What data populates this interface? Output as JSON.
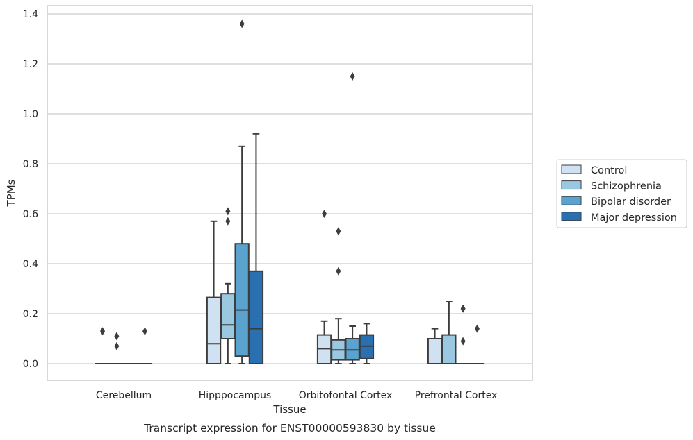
{
  "chart_data": {
    "type": "boxplot",
    "title": "Transcript expression for ENST00000593830 by tissue",
    "xlabel": "Tissue",
    "ylabel": "TPMs",
    "ylim": [
      -0.065,
      1.43
    ],
    "yticks": [
      "0.0",
      "0.2",
      "0.4",
      "0.6",
      "0.8",
      "1.0",
      "1.2",
      "1.4"
    ],
    "ytick_values": [
      0,
      0.2,
      0.4,
      0.6,
      0.8,
      1.0,
      1.2,
      1.4
    ],
    "categories": [
      "Cerebellum",
      "Hipppocampus",
      "Orbitofontal Cortex",
      "Prefrontal Cortex"
    ],
    "grid": "horizontal",
    "legend_position": "right",
    "series": [
      {
        "name": "Control",
        "color": "#d0e1f2",
        "boxes": [
          {
            "category": "Cerebellum",
            "whislo": 0,
            "q1": 0,
            "med": 0,
            "q3": 0,
            "whishi": 0,
            "fliers": [
              0.13
            ]
          },
          {
            "category": "Hipppocampus",
            "whislo": 0,
            "q1": 0,
            "med": 0.08,
            "q3": 0.265,
            "whishi": 0.57,
            "fliers": []
          },
          {
            "category": "Orbitofontal Cortex",
            "whislo": 0,
            "q1": 0,
            "med": 0.06,
            "q3": 0.115,
            "whishi": 0.17,
            "fliers": [
              0.6
            ]
          },
          {
            "category": "Prefrontal Cortex",
            "whislo": 0,
            "q1": 0,
            "med": 0,
            "q3": 0.1,
            "whishi": 0.14,
            "fliers": []
          }
        ]
      },
      {
        "name": "Schizophrenia",
        "color": "#9ac8e0",
        "boxes": [
          {
            "category": "Cerebellum",
            "whislo": 0,
            "q1": 0,
            "med": 0,
            "q3": 0,
            "whishi": 0,
            "fliers": [
              0.11,
              0.07
            ]
          },
          {
            "category": "Hipppocampus",
            "whislo": 0,
            "q1": 0.1,
            "med": 0.155,
            "q3": 0.28,
            "whishi": 0.32,
            "fliers": [
              0.61,
              0.57
            ]
          },
          {
            "category": "Orbitofontal Cortex",
            "whislo": 0,
            "q1": 0.015,
            "med": 0.055,
            "q3": 0.095,
            "whishi": 0.18,
            "fliers": [
              0.53,
              0.37
            ]
          },
          {
            "category": "Prefrontal Cortex",
            "whislo": 0,
            "q1": 0,
            "med": 0,
            "q3": 0.115,
            "whishi": 0.25,
            "fliers": []
          }
        ]
      },
      {
        "name": "Bipolar disorder",
        "color": "#5ba3cf",
        "boxes": [
          {
            "category": "Cerebellum",
            "whislo": 0,
            "q1": 0,
            "med": 0,
            "q3": 0,
            "whishi": 0,
            "fliers": []
          },
          {
            "category": "Hipppocampus",
            "whislo": 0,
            "q1": 0.03,
            "med": 0.215,
            "q3": 0.48,
            "whishi": 0.87,
            "fliers": [
              1.36
            ]
          },
          {
            "category": "Orbitofontal Cortex",
            "whislo": 0,
            "q1": 0.015,
            "med": 0.055,
            "q3": 0.1,
            "whishi": 0.15,
            "fliers": [
              1.15
            ]
          },
          {
            "category": "Prefrontal Cortex",
            "whislo": 0,
            "q1": 0,
            "med": 0,
            "q3": 0,
            "whishi": 0,
            "fliers": [
              0.22,
              0.09
            ]
          }
        ]
      },
      {
        "name": "Major depression",
        "color": "#2a70b0",
        "boxes": [
          {
            "category": "Cerebellum",
            "whislo": 0,
            "q1": 0,
            "med": 0,
            "q3": 0,
            "whishi": 0,
            "fliers": [
              0.13
            ]
          },
          {
            "category": "Hipppocampus",
            "whislo": 0,
            "q1": 0,
            "med": 0.14,
            "q3": 0.37,
            "whishi": 0.92,
            "fliers": []
          },
          {
            "category": "Orbitofontal Cortex",
            "whislo": 0,
            "q1": 0.02,
            "med": 0.07,
            "q3": 0.115,
            "whishi": 0.16,
            "fliers": []
          },
          {
            "category": "Prefrontal Cortex",
            "whislo": 0,
            "q1": 0,
            "med": 0,
            "q3": 0,
            "whishi": 0,
            "fliers": [
              0.14
            ]
          }
        ]
      }
    ]
  }
}
